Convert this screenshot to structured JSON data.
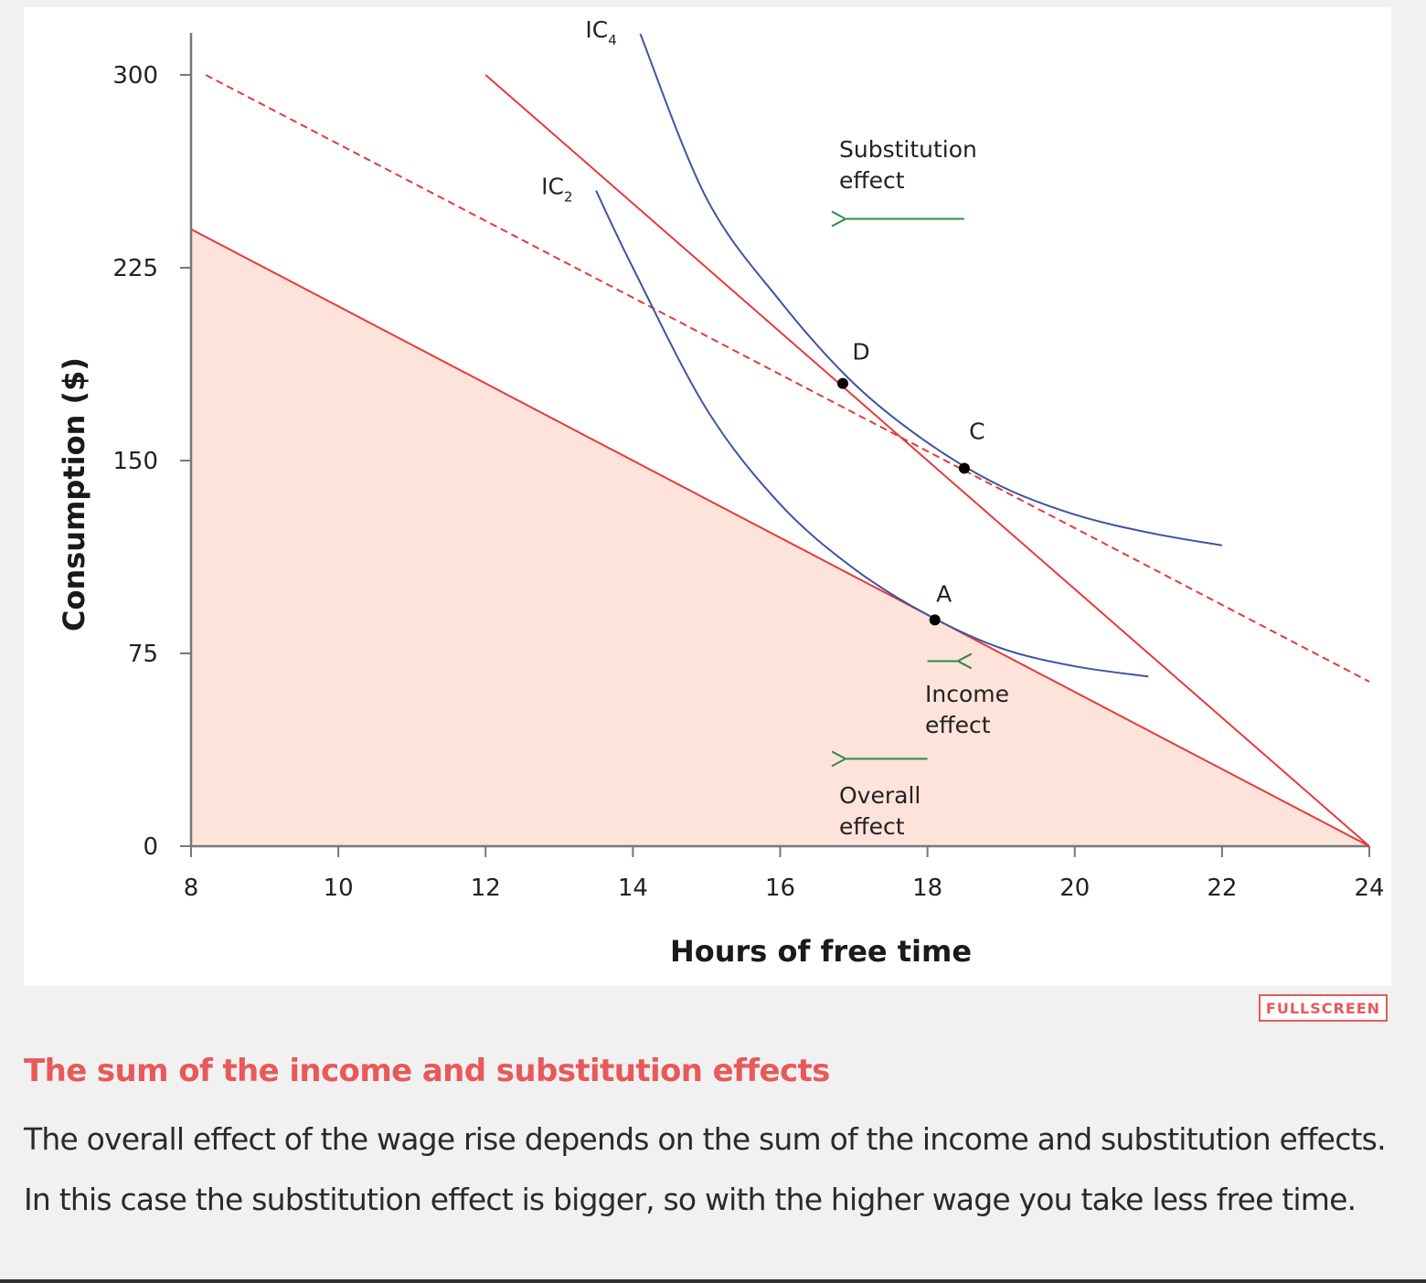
{
  "chart_data": {
    "type": "line",
    "xlabel": "Hours of free time",
    "ylabel": "Consumption ($)",
    "xlim": [
      8,
      24
    ],
    "ylim": [
      0,
      300
    ],
    "x_ticks": [
      "8",
      "10",
      "12",
      "14",
      "16",
      "18",
      "20",
      "22",
      "24"
    ],
    "y_ticks": [
      "0",
      "75",
      "150",
      "225",
      "300"
    ],
    "grid": false,
    "feasible_set_color": "#fde3d9",
    "budget_color": "#e53a3a",
    "ic_color": "#3f54a3",
    "arrow_color": "#2e8b43",
    "budget_lines": [
      {
        "style": "solid",
        "points": [
          [
            8,
            240
          ],
          [
            24,
            0
          ]
        ],
        "shaded": true
      },
      {
        "style": "solid",
        "points": [
          [
            12,
            300
          ],
          [
            24,
            0
          ]
        ]
      },
      {
        "style": "dashed",
        "points": [
          [
            8.2,
            300
          ],
          [
            24,
            64
          ]
        ]
      }
    ],
    "indifference_curves": [
      {
        "label": "IC",
        "sub": "2",
        "points": [
          [
            13.5,
            255
          ],
          [
            14,
            225
          ],
          [
            15,
            170
          ],
          [
            16,
            133
          ],
          [
            17,
            108
          ],
          [
            18,
            90
          ],
          [
            19,
            77
          ],
          [
            20,
            70
          ],
          [
            21,
            66
          ]
        ]
      },
      {
        "label": "IC",
        "sub": "4",
        "points": [
          [
            14.1,
            316
          ],
          [
            15,
            252
          ],
          [
            16,
            212
          ],
          [
            17,
            180
          ],
          [
            18,
            157
          ],
          [
            19,
            140
          ],
          [
            20,
            129
          ],
          [
            21,
            122
          ],
          [
            22,
            117
          ]
        ]
      }
    ],
    "points": [
      {
        "label": "A",
        "x": 18.1,
        "y": 88
      },
      {
        "label": "C",
        "x": 18.5,
        "y": 147
      },
      {
        "label": "D",
        "x": 16.85,
        "y": 180
      }
    ],
    "annotations": [
      {
        "lines": [
          "Substitution",
          "effect"
        ],
        "arrow": {
          "from": [
            18.5,
            244
          ],
          "to": [
            16.9,
            244
          ]
        }
      },
      {
        "lines": [
          "Income",
          "effect"
        ],
        "arrow": {
          "from": [
            18,
            72
          ],
          "to": [
            18.4,
            72
          ]
        }
      },
      {
        "lines": [
          "Overall",
          "effect"
        ],
        "arrow": {
          "from": [
            18,
            34
          ],
          "to": [
            16.9,
            34
          ]
        }
      }
    ]
  },
  "ui": {
    "fullscreen_label": "FULLSCREEN",
    "caption_title": "The sum of the income and substitution effects",
    "caption_body": "The overall effect of the wage rise depends on the sum of the income and substitution effects. In this case the substitution effect is bigger, so with the higher wage you take less free time."
  }
}
